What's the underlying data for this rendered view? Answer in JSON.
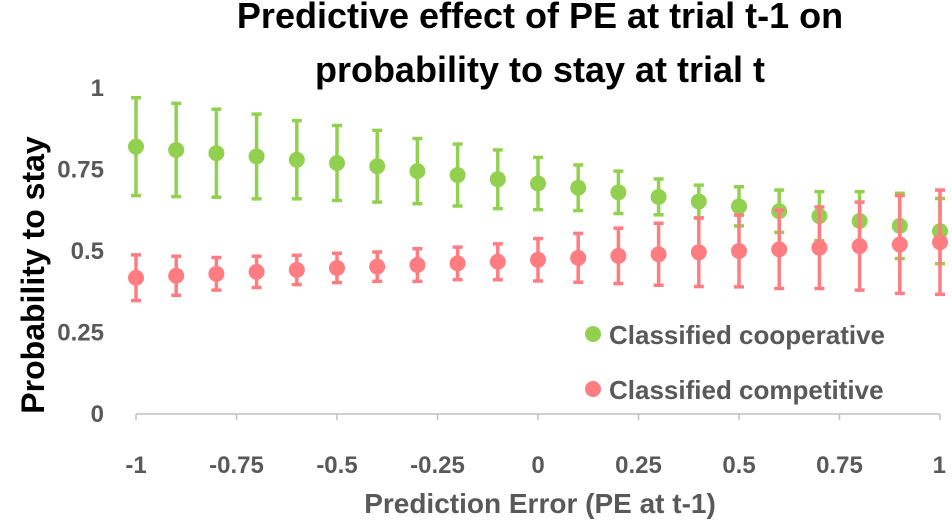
{
  "chart_data": {
    "type": "scatter",
    "title_line1": "Predictive effect of PE at trial t-1 on",
    "title_line2": "probability to stay at trial t",
    "xlabel": "Prediction Error (PE at t-1)",
    "ylabel": "Probability to stay",
    "xlim": [
      -1,
      1
    ],
    "ylim": [
      0,
      1
    ],
    "x_ticks": [
      -1,
      -0.75,
      -0.5,
      -0.25,
      0,
      0.25,
      0.5,
      0.75,
      1
    ],
    "x_tick_labels": [
      "-1",
      "-0.75",
      "-0.5",
      "-0.25",
      "0",
      "0.25",
      "0.5",
      "0.75",
      "1"
    ],
    "y_ticks": [
      0,
      0.25,
      0.5,
      0.75,
      1
    ],
    "y_tick_labels": [
      "0",
      "0.25",
      "0.5",
      "0.75",
      "1"
    ],
    "grid": false,
    "legend_position": "bottom-right",
    "x": [
      -1,
      -0.9,
      -0.8,
      -0.7,
      -0.6,
      -0.5,
      -0.4,
      -0.3,
      -0.2,
      -0.1,
      0,
      0.1,
      0.2,
      0.3,
      0.4,
      0.5,
      0.6,
      0.7,
      0.8,
      0.9,
      1
    ],
    "series": [
      {
        "name": "Classified cooperative",
        "color": "#92d050",
        "values": [
          0.82,
          0.81,
          0.8,
          0.79,
          0.78,
          0.77,
          0.76,
          0.745,
          0.733,
          0.72,
          0.707,
          0.694,
          0.68,
          0.666,
          0.652,
          0.637,
          0.622,
          0.607,
          0.592,
          0.577,
          0.561
        ],
        "error": [
          0.15,
          0.143,
          0.135,
          0.13,
          0.12,
          0.115,
          0.11,
          0.1,
          0.095,
          0.09,
          0.08,
          0.07,
          0.065,
          0.055,
          0.05,
          0.06,
          0.065,
          0.075,
          0.09,
          0.1,
          0.1
        ]
      },
      {
        "name": "Classified competitive",
        "color": "#ff7c80",
        "values": [
          0.418,
          0.424,
          0.43,
          0.436,
          0.442,
          0.448,
          0.452,
          0.457,
          0.462,
          0.467,
          0.473,
          0.479,
          0.485,
          0.49,
          0.496,
          0.5,
          0.505,
          0.51,
          0.515,
          0.52,
          0.527
        ],
        "error": [
          0.07,
          0.06,
          0.05,
          0.048,
          0.045,
          0.045,
          0.045,
          0.05,
          0.05,
          0.055,
          0.065,
          0.075,
          0.085,
          0.095,
          0.105,
          0.11,
          0.12,
          0.125,
          0.135,
          0.15,
          0.16
        ]
      }
    ]
  }
}
